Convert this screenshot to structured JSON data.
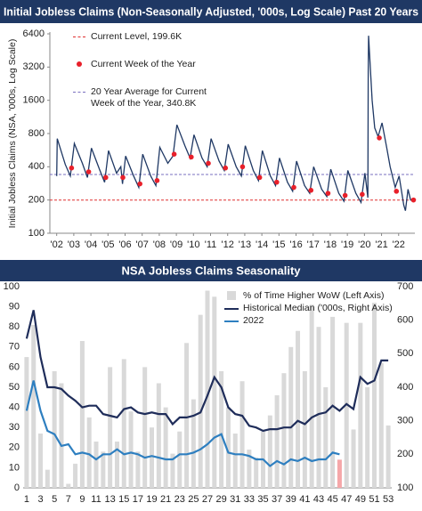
{
  "chart_data": [
    {
      "type": "line",
      "title": "Initial Jobless Claims (Non-Seasonally Adjusted, '000s, Log Scale) Past 20 Years",
      "y_label": "Initial Jobless Claims (NSA, '000s, Log Scale)",
      "log_scale": true,
      "ylim": [
        100,
        6400
      ],
      "yticks": [
        100,
        200,
        400,
        800,
        1600,
        3200,
        6400
      ],
      "xlim": [
        2001.6,
        2022.95
      ],
      "xticks": [
        {
          "value": 2002,
          "label": "'02"
        },
        {
          "value": 2003,
          "label": "'03"
        },
        {
          "value": 2004,
          "label": "'04"
        },
        {
          "value": 2005,
          "label": "'05"
        },
        {
          "value": 2006,
          "label": "'06"
        },
        {
          "value": 2007,
          "label": "'07"
        },
        {
          "value": 2008,
          "label": "'08"
        },
        {
          "value": 2009,
          "label": "'09"
        },
        {
          "value": 2010,
          "label": "'10"
        },
        {
          "value": 2011,
          "label": "'11"
        },
        {
          "value": 2012,
          "label": "'12"
        },
        {
          "value": 2013,
          "label": "'13"
        },
        {
          "value": 2014,
          "label": "'14"
        },
        {
          "value": 2015,
          "label": "'15"
        },
        {
          "value": 2016,
          "label": "'16"
        },
        {
          "value": 2017,
          "label": "'17"
        },
        {
          "value": 2018,
          "label": "'18"
        },
        {
          "value": 2019,
          "label": "'19"
        },
        {
          "value": 2020,
          "label": "'20"
        },
        {
          "value": 2021,
          "label": "'21"
        },
        {
          "value": 2022,
          "label": "'22"
        }
      ],
      "series": [
        {
          "type": "line",
          "color": "#1f3864",
          "x": [
            2002.0,
            2002.03,
            2002.5,
            2002.8,
            2003.03,
            2003.5,
            2003.8,
            2004.03,
            2004.5,
            2004.8,
            2005.03,
            2005.5,
            2005.75,
            2005.85,
            2006.03,
            2006.5,
            2006.8,
            2007.03,
            2007.5,
            2007.8,
            2008.03,
            2008.5,
            2008.8,
            2009.03,
            2009.5,
            2009.8,
            2010.03,
            2010.5,
            2010.8,
            2011.03,
            2011.5,
            2011.8,
            2012.03,
            2012.5,
            2012.8,
            2013.03,
            2013.5,
            2013.8,
            2014.03,
            2014.5,
            2014.8,
            2015.03,
            2015.5,
            2015.8,
            2016.03,
            2016.5,
            2016.8,
            2017.03,
            2017.5,
            2017.8,
            2018.03,
            2018.5,
            2018.8,
            2019.03,
            2019.5,
            2019.8,
            2020.03,
            2020.2,
            2020.22,
            2020.24,
            2020.3,
            2020.45,
            2020.6,
            2020.8,
            2021.03,
            2021.3,
            2021.5,
            2021.8,
            2022.03,
            2022.3,
            2022.4,
            2022.55,
            2022.7,
            2022.87
          ],
          "values": [
            330,
            720,
            420,
            330,
            650,
            430,
            320,
            590,
            380,
            290,
            560,
            350,
            400,
            280,
            500,
            330,
            260,
            520,
            330,
            270,
            600,
            430,
            500,
            960,
            620,
            480,
            780,
            480,
            400,
            720,
            450,
            370,
            640,
            400,
            330,
            620,
            370,
            300,
            560,
            330,
            270,
            480,
            290,
            240,
            450,
            270,
            230,
            400,
            250,
            215,
            380,
            230,
            195,
            370,
            230,
            190,
            350,
            210,
            2900,
            6150,
            4200,
            1600,
            900,
            750,
            1000,
            600,
            400,
            260,
            330,
            180,
            160,
            250,
            200,
            200
          ]
        },
        {
          "type": "scatter",
          "name": "Current Week of the Year",
          "color": "#e8202a",
          "x": [
            2002.87,
            2003.87,
            2004.87,
            2005.87,
            2006.87,
            2007.87,
            2008.87,
            2009.87,
            2010.87,
            2011.87,
            2012.87,
            2013.87,
            2014.87,
            2015.87,
            2016.87,
            2017.87,
            2018.87,
            2019.87,
            2020.87,
            2021.87,
            2022.87
          ],
          "values": [
            390,
            360,
            320,
            320,
            280,
            300,
            520,
            490,
            430,
            390,
            400,
            320,
            290,
            260,
            245,
            230,
            220,
            225,
            730,
            240,
            200
          ]
        }
      ],
      "reference_lines": [
        {
          "name": "Current Level, 199.6K",
          "value": 199.6,
          "color": "#e03030"
        },
        {
          "name": "20 Year Average for Current Week of the Year, 340.8K",
          "value": 340.8,
          "color": "#7a6fbf"
        }
      ]
    },
    {
      "type": "combo",
      "title": "NSA Jobless Claims Seasonality",
      "categories": [
        1,
        null,
        3,
        null,
        5,
        null,
        7,
        null,
        9,
        null,
        11,
        null,
        13,
        null,
        15,
        null,
        17,
        null,
        19,
        null,
        21,
        null,
        23,
        null,
        25,
        null,
        27,
        null,
        29,
        null,
        31,
        null,
        33,
        null,
        35,
        null,
        37,
        null,
        39,
        null,
        41,
        null,
        43,
        null,
        45,
        null,
        47,
        null,
        49,
        null,
        51,
        null,
        53
      ],
      "ylim": [
        0,
        100
      ],
      "yticks": [
        0,
        10,
        20,
        30,
        40,
        50,
        60,
        70,
        80,
        90,
        100
      ],
      "y2lim": [
        100,
        700
      ],
      "y2ticks": [
        100,
        200,
        300,
        400,
        500,
        600,
        700
      ],
      "series": [
        {
          "type": "bar",
          "name": "% of Time Higher WoW (Left Axis)",
          "color": "#d9d9d9",
          "highlight_index": 45,
          "highlight_color": "#f5a7a9",
          "values": [
            65,
            81,
            27,
            9,
            58,
            52,
            2,
            12,
            73,
            35,
            23,
            18,
            60,
            23,
            64,
            38,
            18,
            60,
            30,
            52,
            40,
            17,
            28,
            72,
            44,
            86,
            98,
            95,
            58,
            40,
            27,
            53,
            19,
            15,
            28,
            36,
            46,
            57,
            70,
            78,
            58,
            91,
            80,
            50,
            85,
            14,
            82,
            29,
            82,
            50,
            92,
            62,
            31
          ]
        },
        {
          "type": "line",
          "axis": "y2",
          "name": "Historical Median ('000s, Right Axis)",
          "color": "#1f2d5a",
          "values": [
            545,
            630,
            490,
            400,
            400,
            395,
            375,
            360,
            340,
            345,
            345,
            320,
            315,
            310,
            335,
            340,
            325,
            320,
            325,
            320,
            320,
            290,
            310,
            310,
            315,
            325,
            375,
            430,
            400,
            340,
            320,
            315,
            285,
            280,
            270,
            275,
            275,
            280,
            280,
            300,
            290,
            310,
            320,
            325,
            345,
            330,
            350,
            335,
            430,
            410,
            420,
            480,
            480
          ]
        },
        {
          "type": "line",
          "axis": "y2",
          "name": "2022",
          "color": "#2e7fc0",
          "values": [
            330,
            420,
            330,
            270,
            260,
            225,
            230,
            200,
            205,
            200,
            185,
            200,
            200,
            215,
            200,
            205,
            200,
            190,
            195,
            190,
            185,
            185,
            200,
            200,
            205,
            215,
            230,
            250,
            260,
            205,
            200,
            200,
            195,
            185,
            185,
            165,
            180,
            170,
            185,
            180,
            190,
            180,
            185,
            185,
            205,
            200,
            null,
            null,
            null,
            null,
            null,
            null,
            null
          ]
        }
      ]
    }
  ]
}
